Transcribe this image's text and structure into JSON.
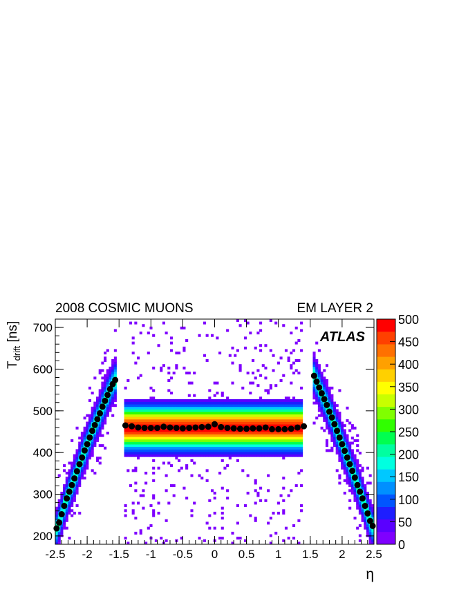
{
  "chart_data": {
    "type": "heatmap",
    "title_left": "2008 COSMIC MUONS",
    "title_right": "EM LAYER 2",
    "experiment_label": "ATLAS",
    "xlabel": "η",
    "ylabel_main": "T",
    "ylabel_sub": "drift",
    "ylabel_unit": " [ns]",
    "xlim": [
      -2.5,
      2.5
    ],
    "ylim": [
      180,
      720
    ],
    "x_ticks": [
      -2.5,
      -2,
      -1.5,
      -1,
      -0.5,
      0,
      0.5,
      1,
      1.5,
      2,
      2.5
    ],
    "x_tick_labels": [
      "-2.5",
      "-2",
      "-1.5",
      "-1",
      "-0.5",
      "0",
      "0.5",
      "1",
      "1.5",
      "2",
      "2.5"
    ],
    "y_ticks": [
      200,
      300,
      400,
      500,
      600,
      700
    ],
    "y_tick_labels": [
      "200",
      "300",
      "400",
      "500",
      "600",
      "700"
    ],
    "colorbar": {
      "range": [
        0,
        500
      ],
      "ticks": [
        0,
        50,
        100,
        150,
        200,
        250,
        300,
        350,
        400,
        450,
        500
      ],
      "tick_labels": [
        "0",
        "50",
        "100",
        "150",
        "200",
        "250",
        "300",
        "350",
        "400",
        "450",
        "500"
      ],
      "colors": [
        "#7f00ff",
        "#5a00ff",
        "#1e1eff",
        "#0055ff",
        "#0090ff",
        "#00c8ff",
        "#00ffe0",
        "#00ffa0",
        "#00ff50",
        "#30ff00",
        "#80ff00",
        "#c8ff00",
        "#ffff00",
        "#ffd000",
        "#ffa000",
        "#ff7000",
        "#ff4000",
        "#ff0000"
      ]
    },
    "profile_series": {
      "name": "",
      "marker_color": "#000000",
      "points": [
        [
          -2.48,
          218
        ],
        [
          -2.44,
          232
        ],
        [
          -2.4,
          252
        ],
        [
          -2.36,
          272
        ],
        [
          -2.32,
          290
        ],
        [
          -2.28,
          306
        ],
        [
          -2.24,
          322
        ],
        [
          -2.2,
          338
        ],
        [
          -2.16,
          355
        ],
        [
          -2.12,
          372
        ],
        [
          -2.08,
          388
        ],
        [
          -2.04,
          405
        ],
        [
          -2.0,
          420
        ],
        [
          -1.96,
          436
        ],
        [
          -1.92,
          452
        ],
        [
          -1.88,
          466
        ],
        [
          -1.84,
          480
        ],
        [
          -1.8,
          494
        ],
        [
          -1.76,
          510
        ],
        [
          -1.72,
          524
        ],
        [
          -1.68,
          538
        ],
        [
          -1.64,
          552
        ],
        [
          -1.6,
          564
        ],
        [
          -1.56,
          574
        ],
        [
          -1.4,
          465
        ],
        [
          -1.3,
          463
        ],
        [
          -1.2,
          460
        ],
        [
          -1.1,
          459
        ],
        [
          -1.0,
          459
        ],
        [
          -0.9,
          459
        ],
        [
          -0.8,
          462
        ],
        [
          -0.7,
          460
        ],
        [
          -0.6,
          459
        ],
        [
          -0.5,
          458
        ],
        [
          -0.4,
          459
        ],
        [
          -0.3,
          460
        ],
        [
          -0.2,
          461
        ],
        [
          -0.1,
          462
        ],
        [
          0.0,
          468
        ],
        [
          0.1,
          461
        ],
        [
          0.2,
          459
        ],
        [
          0.3,
          458
        ],
        [
          0.4,
          457
        ],
        [
          0.5,
          457
        ],
        [
          0.6,
          458
        ],
        [
          0.7,
          458
        ],
        [
          0.8,
          460
        ],
        [
          0.9,
          456
        ],
        [
          1.0,
          456
        ],
        [
          1.1,
          456
        ],
        [
          1.2,
          457
        ],
        [
          1.3,
          460
        ],
        [
          1.4,
          463
        ],
        [
          1.56,
          584
        ],
        [
          1.6,
          570
        ],
        [
          1.64,
          556
        ],
        [
          1.68,
          542
        ],
        [
          1.72,
          528
        ],
        [
          1.76,
          514
        ],
        [
          1.8,
          498
        ],
        [
          1.84,
          484
        ],
        [
          1.88,
          468
        ],
        [
          1.92,
          452
        ],
        [
          1.96,
          436
        ],
        [
          2.0,
          420
        ],
        [
          2.04,
          404
        ],
        [
          2.08,
          388
        ],
        [
          2.12,
          372
        ],
        [
          2.16,
          356
        ],
        [
          2.2,
          340
        ],
        [
          2.24,
          322
        ],
        [
          2.28,
          306
        ],
        [
          2.32,
          290
        ],
        [
          2.36,
          272
        ],
        [
          2.4,
          254
        ],
        [
          2.44,
          236
        ],
        [
          2.48,
          224
        ]
      ]
    },
    "density_bands": [
      {
        "x_range": [
          -1.4,
          1.4
        ],
        "center": 460,
        "sigma": 45,
        "peak": 480
      },
      {
        "x_range": [
          -2.5,
          -1.55
        ],
        "center_line": "endcap_left",
        "sigma": 22,
        "peak": 200
      },
      {
        "x_range": [
          1.55,
          2.5
        ],
        "center_line": "endcap_right",
        "sigma": 22,
        "peak": 200
      }
    ]
  }
}
